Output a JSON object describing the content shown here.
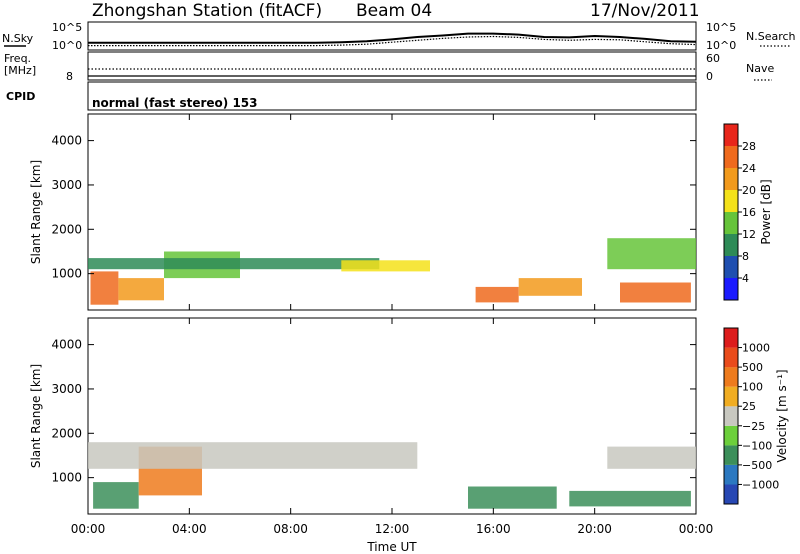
{
  "header": {
    "station": "Zhongshan Station (fitACF)",
    "beam": "Beam 04",
    "date": "17/Nov/2011"
  },
  "chart_data": [
    {
      "type": "line",
      "panel": "noise",
      "left_labels": [
        "N.Sky",
        "10^5",
        "10^0"
      ],
      "right_labels": [
        "10^5",
        "10^0",
        "N.Search"
      ],
      "x": [
        0,
        1,
        2,
        3,
        4,
        5,
        6,
        7,
        8,
        9,
        10,
        11,
        12,
        13,
        14,
        15,
        16,
        17,
        18,
        19,
        20,
        21,
        22,
        23,
        24
      ],
      "series": [
        {
          "name": "N.Sky",
          "values": [
            1.1,
            1.1,
            1.1,
            1.1,
            1.1,
            1.1,
            1.1,
            1.1,
            1.1,
            1.1,
            1.2,
            1.4,
            1.8,
            2.3,
            2.6,
            3.0,
            3.0,
            2.8,
            2.3,
            2.2,
            2.5,
            2.3,
            1.9,
            1.4,
            1.3
          ]
        },
        {
          "name": "N.Search",
          "values": [
            0.5,
            0.5,
            0.5,
            0.5,
            0.5,
            0.5,
            0.5,
            0.5,
            0.5,
            0.5,
            0.6,
            0.8,
            1.2,
            1.6,
            2.0,
            2.3,
            2.4,
            2.2,
            1.8,
            1.6,
            1.8,
            1.7,
            1.3,
            0.9,
            0.7
          ]
        }
      ],
      "ylim": [
        0,
        5
      ]
    },
    {
      "type": "line",
      "panel": "frequency",
      "left_labels": [
        "Freq.",
        "[MHz]",
        "8"
      ],
      "right_labels": [
        "60",
        "0",
        "Nave"
      ],
      "x": [
        0,
        2,
        4,
        6,
        8,
        10,
        12,
        14,
        16,
        18,
        20,
        22,
        24
      ],
      "series": [
        {
          "name": "Freq.",
          "values": [
            10.6,
            10.6,
            10.6,
            10.6,
            10.6,
            10.6,
            10.6,
            10.6,
            10.6,
            10.6,
            10.6,
            10.6,
            10.6
          ]
        },
        {
          "name": "Nave",
          "values": [
            30,
            30,
            30,
            30,
            30,
            30,
            30,
            30,
            30,
            30,
            30,
            30,
            30
          ]
        }
      ]
    },
    {
      "type": "text",
      "panel": "cpid",
      "label": "CPID",
      "mode": "normal (fast stereo) 153"
    },
    {
      "type": "heatmap",
      "panel": "power",
      "ylabel": "Slant Range [km]",
      "yticks": [
        "1000",
        "2000",
        "3000",
        "4000"
      ],
      "ylim": [
        180,
        4600
      ],
      "xlim": [
        0,
        24
      ],
      "colorbar": {
        "label": "Power [dB]",
        "ticks": [
          "4",
          "8",
          "12",
          "16",
          "20",
          "24",
          "28"
        ],
        "colors": [
          "#1b1bff",
          "#1f4fb0",
          "#2e8b57",
          "#66c43a",
          "#f4e21a",
          "#f29a1c",
          "#ef6a1d",
          "#e8261b"
        ]
      },
      "regions": [
        {
          "t0": 0.1,
          "t1": 1.2,
          "r0": 300,
          "r1": 1050,
          "level": 6
        },
        {
          "t0": 1.2,
          "t1": 3.0,
          "r0": 400,
          "r1": 900,
          "level": 5
        },
        {
          "t0": 3.0,
          "t1": 6.0,
          "r0": 900,
          "r1": 1500,
          "level": 3
        },
        {
          "t0": 0.0,
          "t1": 11.5,
          "r0": 1100,
          "r1": 1350,
          "level": 2
        },
        {
          "t0": 10.0,
          "t1": 13.5,
          "r0": 1050,
          "r1": 1300,
          "level": 4
        },
        {
          "t0": 15.3,
          "t1": 17.0,
          "r0": 350,
          "r1": 700,
          "level": 6
        },
        {
          "t0": 17.0,
          "t1": 19.5,
          "r0": 500,
          "r1": 900,
          "level": 5
        },
        {
          "t0": 21.0,
          "t1": 23.8,
          "r0": 350,
          "r1": 800,
          "level": 6
        },
        {
          "t0": 20.5,
          "t1": 24.0,
          "r0": 1100,
          "r1": 1800,
          "level": 3
        }
      ]
    },
    {
      "type": "heatmap",
      "panel": "velocity",
      "ylabel": "Slant Range [km]",
      "yticks": [
        "1000",
        "2000",
        "3000",
        "4000"
      ],
      "ylim": [
        180,
        4600
      ],
      "xlim": [
        0,
        24
      ],
      "colorbar": {
        "label": "Velocity [m s⁻¹]",
        "ticks": [
          "1000",
          "500",
          "100",
          "25",
          "−25",
          "−100",
          "−500",
          "−1000"
        ],
        "colors": [
          "#2747b3",
          "#2b78c0",
          "#3c8f5a",
          "#6ccf3b",
          "#c8c8c0",
          "#f1ad22",
          "#ee7b1d",
          "#e94b1b",
          "#dd1c1c"
        ]
      },
      "regions": [
        {
          "t0": 0.2,
          "t1": 2.0,
          "r0": 300,
          "r1": 900,
          "level": 2
        },
        {
          "t0": 2.0,
          "t1": 4.5,
          "r0": 600,
          "r1": 1700,
          "level": 6
        },
        {
          "t0": 0.0,
          "t1": 13.0,
          "r0": 1200,
          "r1": 1800,
          "level": 4
        },
        {
          "t0": 15.0,
          "t1": 18.5,
          "r0": 300,
          "r1": 800,
          "level": 2
        },
        {
          "t0": 19.0,
          "t1": 23.8,
          "r0": 350,
          "r1": 700,
          "level": 2
        },
        {
          "t0": 20.5,
          "t1": 24.0,
          "r0": 1200,
          "r1": 1700,
          "level": 4
        }
      ]
    }
  ],
  "xaxis": {
    "ticks": [
      "00:00",
      "04:00",
      "08:00",
      "12:00",
      "16:00",
      "20:00",
      "00:00"
    ],
    "label": "Time UT"
  }
}
